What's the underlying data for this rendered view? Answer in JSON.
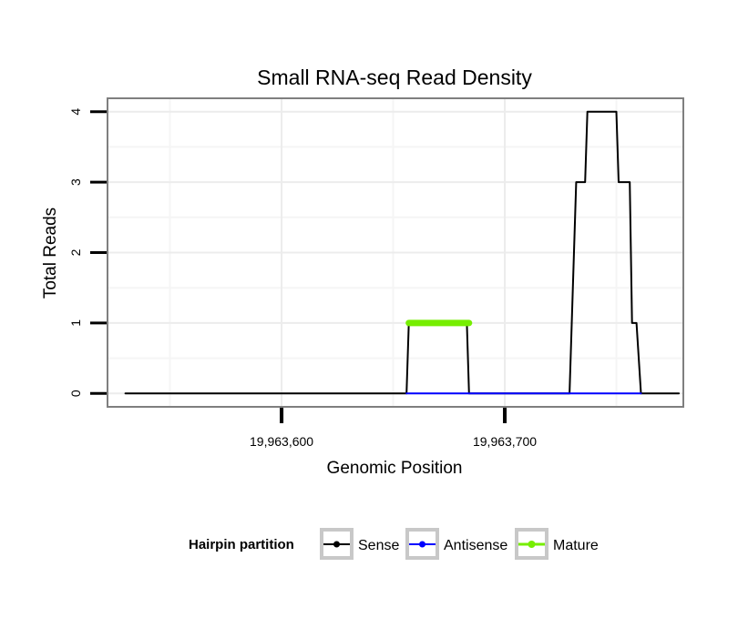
{
  "chart_data": {
    "type": "line",
    "title": "Small RNA-seq Read Density",
    "xlabel": "Genomic Position",
    "ylabel": "Total Reads",
    "xlim": [
      19963522,
      19963780
    ],
    "ylim": [
      -0.19,
      4.19
    ],
    "xticks": [
      {
        "value": 19963600,
        "label": "19,963,600"
      },
      {
        "value": 19963700,
        "label": "19,963,700"
      }
    ],
    "yticks": [
      {
        "value": 0,
        "label": "0"
      },
      {
        "value": 1,
        "label": "1"
      },
      {
        "value": 2,
        "label": "2"
      },
      {
        "value": 3,
        "label": "3"
      },
      {
        "value": 4,
        "label": "4"
      }
    ],
    "x_minor_grid": [
      19963550,
      19963650,
      19963750
    ],
    "y_minor_grid": [
      0.5,
      1.5,
      2.5,
      3.5
    ],
    "grid": true,
    "legend": {
      "title": "Hairpin partition",
      "position": "bottom",
      "entries": [
        "Sense",
        "Antisense",
        "Mature"
      ]
    },
    "series": [
      {
        "name": "Sense",
        "color": "#000000",
        "points": [
          [
            19963530,
            0
          ],
          [
            19963656,
            0
          ],
          [
            19963657,
            1
          ],
          [
            19963683,
            1
          ],
          [
            19963684,
            0
          ],
          [
            19963729,
            0
          ],
          [
            19963732,
            3
          ],
          [
            19963736,
            3
          ],
          [
            19963737,
            4
          ],
          [
            19963750,
            4
          ],
          [
            19963751,
            3
          ],
          [
            19963756,
            3
          ],
          [
            19963757,
            1
          ],
          [
            19963759,
            1
          ],
          [
            19963761,
            0
          ],
          [
            19963778,
            0
          ]
        ]
      },
      {
        "name": "Antisense",
        "color": "#0000ff",
        "points": [
          [
            19963656,
            0
          ],
          [
            19963684,
            0
          ],
          [
            19963729,
            0
          ],
          [
            19963761,
            0
          ]
        ]
      },
      {
        "name": "Mature",
        "color": "#76ee00",
        "points": [
          [
            19963657,
            1
          ],
          [
            19963684,
            1
          ]
        ]
      }
    ]
  }
}
